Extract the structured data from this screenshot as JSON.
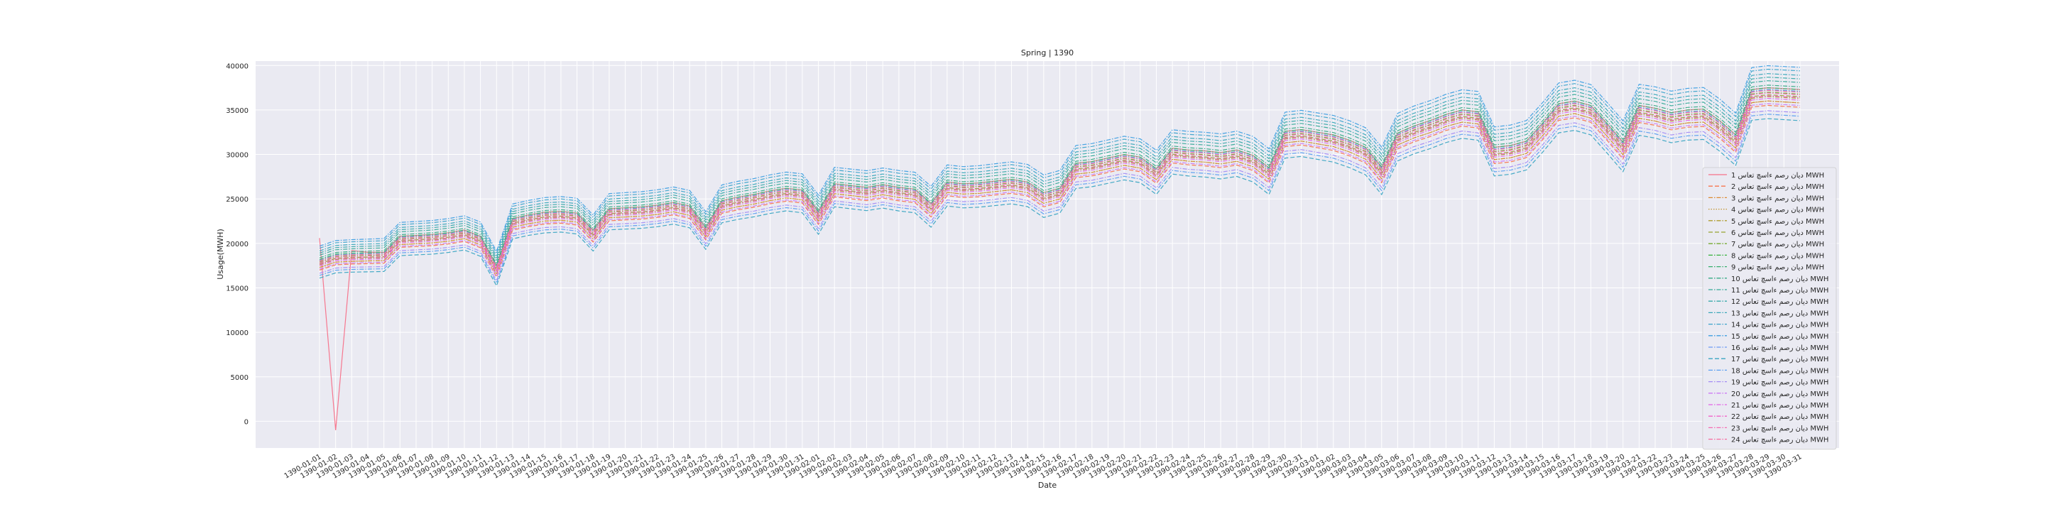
{
  "chart_data": {
    "type": "line",
    "title": "Spring | 1390",
    "xlabel": "Date",
    "ylabel": "Usage(MWH)",
    "ylim": [
      -3000,
      40500
    ],
    "yticks": [
      0,
      5000,
      10000,
      15000,
      20000,
      25000,
      30000,
      35000,
      40000
    ],
    "grid": true,
    "legend_position": "right",
    "x": [
      "1390-01-01",
      "1390-01-02",
      "1390-01-03",
      "1390-01-04",
      "1390-01-05",
      "1390-01-06",
      "1390-01-07",
      "1390-01-08",
      "1390-01-09",
      "1390-01-10",
      "1390-01-11",
      "1390-01-12",
      "1390-01-13",
      "1390-01-14",
      "1390-01-15",
      "1390-01-16",
      "1390-01-17",
      "1390-01-18",
      "1390-01-19",
      "1390-01-20",
      "1390-01-21",
      "1390-01-22",
      "1390-01-23",
      "1390-01-24",
      "1390-01-25",
      "1390-01-26",
      "1390-01-27",
      "1390-01-28",
      "1390-01-29",
      "1390-01-30",
      "1390-01-31",
      "1390-02-01",
      "1390-02-02",
      "1390-02-03",
      "1390-02-04",
      "1390-02-05",
      "1390-02-06",
      "1390-02-07",
      "1390-02-08",
      "1390-02-09",
      "1390-02-10",
      "1390-02-11",
      "1390-02-12",
      "1390-02-13",
      "1390-02-14",
      "1390-02-15",
      "1390-02-16",
      "1390-02-17",
      "1390-02-18",
      "1390-02-19",
      "1390-02-20",
      "1390-02-21",
      "1390-02-22",
      "1390-02-23",
      "1390-02-24",
      "1390-02-25",
      "1390-02-26",
      "1390-02-27",
      "1390-02-28",
      "1390-02-29",
      "1390-02-30",
      "1390-02-31",
      "1390-03-01",
      "1390-03-02",
      "1390-03-03",
      "1390-03-04",
      "1390-03-05",
      "1390-03-06",
      "1390-03-07",
      "1390-03-08",
      "1390-03-09",
      "1390-03-10",
      "1390-03-11",
      "1390-03-12",
      "1390-03-13",
      "1390-03-14",
      "1390-03-15",
      "1390-03-16",
      "1390-03-17",
      "1390-03-18",
      "1390-03-19",
      "1390-03-20",
      "1390-03-21",
      "1390-03-22",
      "1390-03-23",
      "1390-03-24",
      "1390-03-25",
      "1390-03-26",
      "1390-03-27",
      "1390-03-28",
      "1390-03-29",
      "1390-03-30",
      "1390-03-31"
    ],
    "series_meta": [
      {
        "name": "دیان رصم ءاسچ تعاس 1 MWH",
        "color": "#f77189",
        "dash": "solid"
      },
      {
        "name": "دیان رصم ءاسچ تعاس 2 MWH",
        "color": "#f7754f",
        "dash": "dashed"
      },
      {
        "name": "دیان رصم ءاسچ تعاس 3 MWH",
        "color": "#dd8a31",
        "dash": "dashdot"
      },
      {
        "name": "دیان رصم ءاسچ تعاس 4 MWH",
        "color": "#c39532",
        "dash": "dotted"
      },
      {
        "name": "دیان رصم ءاسچ تعاس 5 MWH",
        "color": "#ae9d31",
        "dash": "dashdot"
      },
      {
        "name": "دیان رصم ءاسچ تعاس 6 MWH",
        "color": "#97a431",
        "dash": "dashed"
      },
      {
        "name": "دیان رصم ءاسچ تعاس 7 MWH",
        "color": "#77ab31",
        "dash": "dashdot"
      },
      {
        "name": "دیان رصم ءاسچ تعاس 8 MWH",
        "color": "#33b039",
        "dash": "dashdot"
      },
      {
        "name": "دیان رصم ءاسچ تعاس 9 MWH",
        "color": "#35ad6b",
        "dash": "dashdot"
      },
      {
        "name": "دیان رصم ءاسچ تعاس 10 MWH",
        "color": "#36ab85",
        "dash": "dashdot"
      },
      {
        "name": "دیان رصم ءاسچ تعاس 11 MWH",
        "color": "#37aa98",
        "dash": "dashdot"
      },
      {
        "name": "دیان رصم ءاسچ تعاس 12 MWH",
        "color": "#38a9a9",
        "dash": "dashdot"
      },
      {
        "name": "دیان رصم ءاسچ تعاس 13 MWH",
        "color": "#39a7b9",
        "dash": "dashdot"
      },
      {
        "name": "دیان رصم ءاسچ تعاس 14 MWH",
        "color": "#3ba3ca",
        "dash": "dashdot"
      },
      {
        "name": "دیان رصم ءاسچ تعاس 15 MWH",
        "color": "#3e9fe1",
        "dash": "dashdot"
      },
      {
        "name": "دیان رصم ءاسچ تعاس 16 MWH",
        "color": "#6e9bf4",
        "dash": "dashdot"
      },
      {
        "name": "دیان رصم ءاسچ تعاس 17 MWH",
        "color": "#3aa5c2",
        "dash": "dashed"
      },
      {
        "name": "دیان رصم ءاسچ تعاس 18 MWH",
        "color": "#5a9ff0",
        "dash": "dashdot"
      },
      {
        "name": "دیان رصم ءاسچ تعاس 19 MWH",
        "color": "#a48cf4",
        "dash": "dashdot"
      },
      {
        "name": "دیان رصم ءاسچ تعاس 20 MWH",
        "color": "#cc7af4",
        "dash": "dashdot"
      },
      {
        "name": "دیان رصم ءاسچ تعاس 21 MWH",
        "color": "#e264e6",
        "dash": "dashdot"
      },
      {
        "name": "دیان رصم ءاسچ تعاس 22 MWH",
        "color": "#f262c9",
        "dash": "dashdot"
      },
      {
        "name": "دیان رصم ءاسچ تعاس 23 MWH",
        "color": "#f56db2",
        "dash": "dashdot"
      },
      {
        "name": "دیان رصم ءاسچ تعاس 24 MWH",
        "color": "#f66c9f",
        "dash": "dashdot"
      }
    ],
    "reference_series": [
      18200,
      18800,
      18900,
      18950,
      19000,
      20800,
      20900,
      21000,
      21200,
      21500,
      20800,
      17500,
      22800,
      23200,
      23500,
      23600,
      23400,
      21500,
      23900,
      24000,
      24100,
      24300,
      24600,
      24200,
      21800,
      24800,
      25200,
      25500,
      25900,
      26200,
      26000,
      23600,
      26700,
      26500,
      26300,
      26600,
      26300,
      26100,
      24500,
      26900,
      26700,
      26800,
      27000,
      27200,
      26900,
      25700,
      26200,
      29000,
      29200,
      29600,
      30000,
      29700,
      28400,
      30700,
      30500,
      30400,
      30200,
      30500,
      29900,
      28500,
      32600,
      32800,
      32500,
      32200,
      31600,
      30800,
      28600,
      32400,
      33200,
      33800,
      34500,
      35000,
      34800,
      30800,
      31000,
      31500,
      33500,
      35700,
      36000,
      35500,
      33500,
      31400,
      35500,
      35200,
      34700,
      35000,
      35100,
      33800,
      32200,
      37300,
      37500,
      37400,
      37300
    ],
    "reference_offsets": [
      -2500,
      -2000,
      -1500,
      -1500,
      -1000,
      -800,
      -500,
      -200,
      0,
      300,
      800,
      1200,
      1600,
      2100,
      2500,
      -200,
      -3500,
      -3000,
      -2600,
      -1800,
      -1200,
      -900,
      -600,
      -300,
      1000,
      500
    ],
    "first_series_values": [
      20600,
      -1000,
      19200,
      19000,
      19000,
      20800,
      20900,
      21000,
      21200,
      21500,
      20800,
      17500,
      22800,
      23200,
      23500,
      23600,
      23400,
      21500,
      23900,
      24000,
      24100,
      24300,
      24600,
      24200,
      21800,
      24800,
      25200,
      25500,
      25900,
      26200,
      26000,
      23600,
      26700,
      26500,
      26300,
      26600,
      26300,
      26100,
      24500,
      26900,
      26700,
      26800,
      27000,
      27200,
      26900,
      25700,
      26200,
      29000,
      29200,
      29600,
      30000,
      29700,
      28400,
      30700,
      30500,
      30400,
      30200,
      30500,
      29900,
      28500,
      32600,
      32800,
      32500,
      32200,
      31600,
      30800,
      28600,
      32400,
      33200,
      33800,
      34500,
      35000,
      34800,
      30800,
      31000,
      31500,
      33500,
      35700,
      36000,
      35500,
      33500,
      31400,
      35500,
      35200,
      34700,
      35000,
      35100,
      33800,
      32200,
      37300,
      37500,
      37400,
      37300
    ]
  }
}
